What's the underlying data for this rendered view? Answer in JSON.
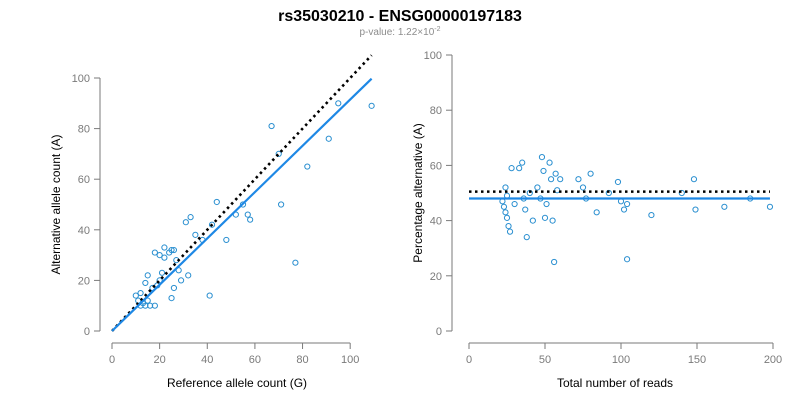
{
  "title": "rs35030210 - ENSG00000197183",
  "subtitle": {
    "prefix": "p-value: 1.22×10",
    "exponent": "-2"
  },
  "colors": {
    "points": "#2a8fd0",
    "fit_line": "#1e88e5",
    "reference_line": "#000000",
    "axes": "#7a7a7a"
  },
  "chart_data": [
    {
      "type": "scatter",
      "title": "",
      "xlabel": "Reference allele count (G)",
      "ylabel": "Alternative allele count (A)",
      "xlim": [
        0,
        110
      ],
      "ylim": [
        0,
        100
      ],
      "xticks": [
        0,
        20,
        40,
        60,
        80,
        100
      ],
      "yticks": [
        0,
        20,
        40,
        60,
        80,
        100
      ],
      "grid": false,
      "legend": "none",
      "reference_line": {
        "style": "dotted",
        "slope": 1,
        "intercept": 0,
        "x_range": [
          0,
          109
        ]
      },
      "fit_line": {
        "style": "solid",
        "slope": 0.915,
        "intercept": 0,
        "x_range": [
          0,
          109
        ]
      },
      "points": [
        [
          10,
          14
        ],
        [
          11,
          12
        ],
        [
          12,
          10
        ],
        [
          13,
          11
        ],
        [
          14,
          10
        ],
        [
          15,
          12
        ],
        [
          16,
          10
        ],
        [
          18,
          10
        ],
        [
          12,
          15
        ],
        [
          14,
          19
        ],
        [
          15,
          22
        ],
        [
          17,
          17
        ],
        [
          19,
          18
        ],
        [
          20,
          20
        ],
        [
          21,
          23
        ],
        [
          18,
          31
        ],
        [
          20,
          30
        ],
        [
          22,
          33
        ],
        [
          22,
          29
        ],
        [
          24,
          31
        ],
        [
          25,
          32
        ],
        [
          26,
          32
        ],
        [
          27,
          28
        ],
        [
          25,
          13
        ],
        [
          26,
          17
        ],
        [
          28,
          24
        ],
        [
          29,
          20
        ],
        [
          31,
          43
        ],
        [
          32,
          22
        ],
        [
          33,
          45
        ],
        [
          35,
          38
        ],
        [
          38,
          36
        ],
        [
          41,
          14
        ],
        [
          42,
          42
        ],
        [
          44,
          51
        ],
        [
          48,
          36
        ],
        [
          52,
          46
        ],
        [
          55,
          50
        ],
        [
          57,
          46
        ],
        [
          58,
          44
        ],
        [
          67,
          81
        ],
        [
          70,
          70
        ],
        [
          71,
          50
        ],
        [
          77,
          27
        ],
        [
          82,
          65
        ],
        [
          91,
          76
        ],
        [
          95,
          90
        ],
        [
          109,
          89
        ]
      ]
    },
    {
      "type": "scatter",
      "title": "",
      "xlabel": "Total number of reads",
      "ylabel": "Percentage alternative (A)",
      "xlim": [
        0,
        200
      ],
      "ylim": [
        0,
        100
      ],
      "xticks": [
        0,
        50,
        100,
        150,
        200
      ],
      "yticks": [
        0,
        20,
        40,
        60,
        80,
        100
      ],
      "grid": false,
      "legend": "none",
      "reference_line": {
        "style": "dotted",
        "y": 50.5,
        "x_range": [
          0,
          198
        ]
      },
      "fit_line": {
        "style": "solid",
        "y": 48,
        "x_range": [
          0,
          198
        ]
      },
      "points": [
        [
          22,
          47
        ],
        [
          23,
          45
        ],
        [
          24,
          43
        ],
        [
          24,
          52
        ],
        [
          25,
          49
        ],
        [
          25,
          41
        ],
        [
          26,
          38
        ],
        [
          27,
          36
        ],
        [
          28,
          59
        ],
        [
          30,
          46
        ],
        [
          33,
          59
        ],
        [
          35,
          61
        ],
        [
          36,
          48
        ],
        [
          37,
          44
        ],
        [
          38,
          34
        ],
        [
          40,
          50
        ],
        [
          42,
          40
        ],
        [
          45,
          52
        ],
        [
          47,
          48
        ],
        [
          48,
          63
        ],
        [
          49,
          58
        ],
        [
          50,
          41
        ],
        [
          51,
          46
        ],
        [
          53,
          61
        ],
        [
          54,
          55
        ],
        [
          55,
          40
        ],
        [
          56,
          25
        ],
        [
          57,
          57
        ],
        [
          58,
          51
        ],
        [
          60,
          55
        ],
        [
          72,
          55
        ],
        [
          75,
          52
        ],
        [
          77,
          48
        ],
        [
          80,
          57
        ],
        [
          84,
          43
        ],
        [
          92,
          50
        ],
        [
          98,
          54
        ],
        [
          100,
          47
        ],
        [
          102,
          44
        ],
        [
          104,
          46
        ],
        [
          104,
          26
        ],
        [
          120,
          42
        ],
        [
          140,
          50
        ],
        [
          148,
          55
        ],
        [
          149,
          44
        ],
        [
          168,
          45
        ],
        [
          185,
          48
        ],
        [
          198,
          45
        ]
      ]
    }
  ]
}
